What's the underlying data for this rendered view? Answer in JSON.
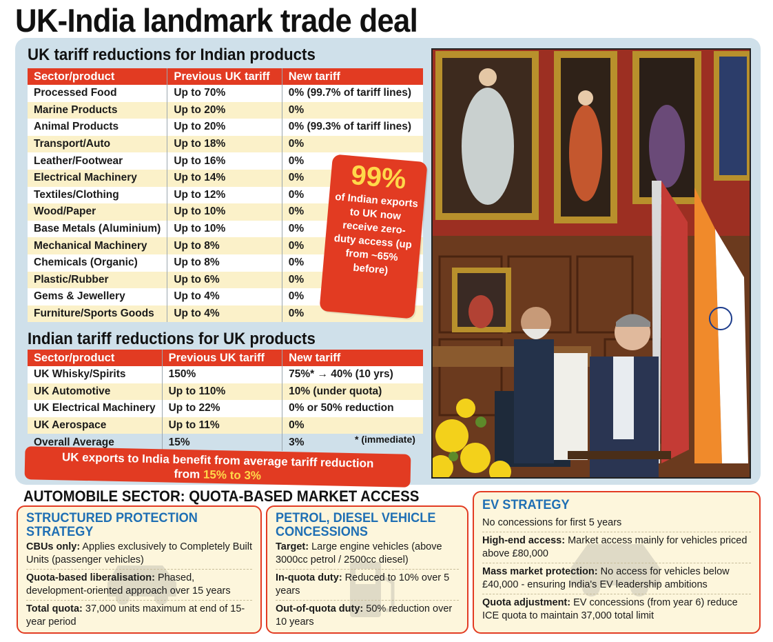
{
  "headline": "UK-India landmark trade deal",
  "uk_section": {
    "title": "UK tariff reductions for Indian products",
    "headers": [
      "Sector/product",
      "Previous UK tariff",
      "New tariff"
    ],
    "rows": [
      [
        "Processed Food",
        "Up to 70%",
        "0% (99.7% of tariff lines)"
      ],
      [
        "Marine Products",
        "Up to 20%",
        "0%"
      ],
      [
        "Animal Products",
        "Up to 20%",
        "0% (99.3% of tariff lines)"
      ],
      [
        "Transport/Auto",
        "Up to 18%",
        "0%"
      ],
      [
        "Leather/Footwear",
        "Up to 16%",
        "0%"
      ],
      [
        "Electrical Machinery",
        "Up to 14%",
        "0%"
      ],
      [
        "Textiles/Clothing",
        "Up to 12%",
        "0%"
      ],
      [
        "Wood/Paper",
        "Up to 10%",
        "0%"
      ],
      [
        "Base Metals (Aluminium)",
        "Up to 10%",
        "0%"
      ],
      [
        "Mechanical Machinery",
        "Up to 8%",
        "0%"
      ],
      [
        "Chemicals (Organic)",
        "Up to 8%",
        "0%"
      ],
      [
        "Plastic/Rubber",
        "Up to 6%",
        "0%"
      ],
      [
        "Gems & Jewellery",
        "Up to 4%",
        "0%"
      ],
      [
        "Furniture/Sports Goods",
        "Up to 4%",
        "0%"
      ]
    ]
  },
  "callout": {
    "big": "99%",
    "text": "of Indian exports to UK now receive zero-duty access (up from ~65% before)"
  },
  "india_section": {
    "title": "Indian tariff reductions for UK products",
    "headers": [
      "Sector/product",
      "Previous UK tariff",
      "New tariff"
    ],
    "rows": [
      [
        "UK Whisky/Spirits",
        "150%",
        "75%* → 40% (10 yrs)"
      ],
      [
        "UK Automotive",
        "Up to 110%",
        "10% (under quota)"
      ],
      [
        "UK Electrical Machinery",
        "Up to 22%",
        "0% or 50% reduction"
      ],
      [
        "UK Aerospace",
        "Up to 11%",
        "0%"
      ],
      [
        "Overall Average",
        "15%",
        "3%"
      ]
    ],
    "footnote": "* (immediate)"
  },
  "banner": {
    "line1": "UK exports to India benefit from average tariff reduction",
    "line2_prefix": "from ",
    "line2_highlight": "15% to 3%"
  },
  "auto_title": "AUTOMOBILE SECTOR: QUOTA-BASED MARKET ACCESS",
  "card1": {
    "title_line1": "STRUCTURED PROTECTION",
    "title_line2": "STRATEGY",
    "items": [
      {
        "label": "CBUs only:",
        "text": " Applies exclusively to Completely Built Units (passenger vehicles)"
      },
      {
        "label": "Quota-based liberalisation:",
        "text": " Phased, development-oriented approach over 15 years"
      },
      {
        "label": "Total quota:",
        "text": " 37,000 units maximum at end of 15-year period"
      }
    ]
  },
  "card2": {
    "title_line1": "PETROL, DIESEL VEHICLE",
    "title_line2": "CONCESSIONS",
    "items": [
      {
        "label": "Target:",
        "text": " Large engine vehicles (above 3000cc petrol / 2500cc diesel)"
      },
      {
        "label": "In-quota duty:",
        "text": " Reduced to 10% over 5 years"
      },
      {
        "label": "Out-of-quota duty:",
        "text": " 50% reduction over 10 years"
      }
    ]
  },
  "card3": {
    "title": "EV STRATEGY",
    "items": [
      {
        "label": "",
        "text": "No concessions for first 5 years"
      },
      {
        "label": "High-end access:",
        "text": " Market access mainly for vehicles priced above £80,000"
      },
      {
        "label": "Mass market protection:",
        "text": " No access for vehicles below £40,000 - ensuring India's EV leadership ambitions"
      },
      {
        "label": "Quota adjustment:",
        "text": " EV concessions (from year 6) reduce ICE quota to maintain 37,000 total limit"
      }
    ]
  },
  "colors": {
    "accent_red": "#e23b22",
    "panel_blue": "#cfe0ea",
    "row_cream": "#fbf1c9",
    "highlight_yellow": "#ffd84a",
    "card_title_blue": "#1f6fb4"
  }
}
